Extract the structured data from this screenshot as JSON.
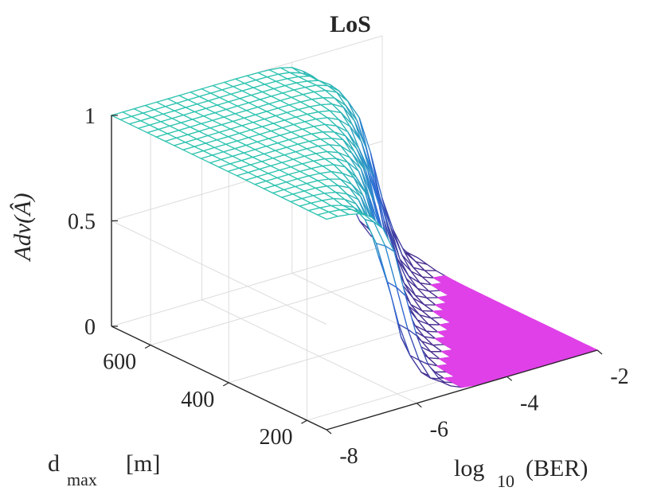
{
  "chart_data": {
    "type": "surface",
    "title": "LoS",
    "zlabel": "Adv(Â)",
    "xlabel": {
      "main": "log",
      "sub": "10",
      "rest": "(BER)"
    },
    "ylabel": {
      "main": "d",
      "sub": "max",
      "rest": "[m]"
    },
    "xlim": [
      -8,
      -2
    ],
    "ylim": [
      150,
      700
    ],
    "zlim": [
      0,
      1
    ],
    "x_ticks": [
      "-8",
      "-6",
      "-4",
      "-2"
    ],
    "y_ticks": [
      "200",
      "400",
      "600"
    ],
    "z_ticks": [
      "0",
      "0.5",
      "1"
    ],
    "grid": true,
    "colormap": "cool (cyan to magenta)",
    "colors": {
      "high": "#2ec4b0",
      "mid": "#2e6fd8",
      "low": "#4a2a8c",
      "zero": "#e040e8"
    },
    "description_of_surface": {
      "grid_size": [
        25,
        25
      ],
      "transition_center_log10BER": {
        "at_d_200": -6.2,
        "at_d_600": -3.0
      },
      "plateau_value": 1,
      "floor_value": 0
    }
  }
}
